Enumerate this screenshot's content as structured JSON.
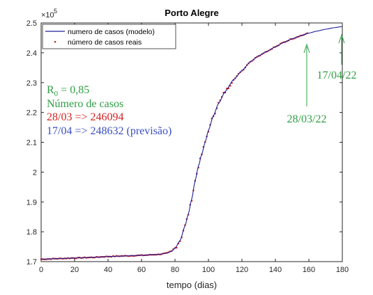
{
  "chart_data": {
    "type": "line",
    "title": "Porto Alegre",
    "xlabel": "tempo (dias)",
    "ylabel": "",
    "y_exponent_label": "×10",
    "y_exponent_power": "5",
    "xlim": [
      0,
      180
    ],
    "ylim": [
      1.7,
      2.5
    ],
    "x_ticks": [
      0,
      20,
      40,
      60,
      80,
      100,
      120,
      140,
      160,
      180
    ],
    "x_tick_labels": [
      "0",
      "20",
      "40",
      "60",
      "80",
      "100",
      "120",
      "140",
      "160",
      "180"
    ],
    "y_ticks": [
      1.7,
      1.8,
      1.9,
      2.0,
      2.1,
      2.2,
      2.3,
      2.4,
      2.5
    ],
    "y_tick_labels": [
      "1.7",
      "1.8",
      "1.9",
      "2",
      "2.1",
      "2.2",
      "2.3",
      "2.4",
      "2.5"
    ],
    "grid": false,
    "legend_position": "top-left",
    "series": [
      {
        "name": "numero de casos (modelo)",
        "style": "line",
        "color": "#1f1f99",
        "x": [
          0,
          10,
          20,
          30,
          40,
          50,
          60,
          70,
          75,
          78,
          80,
          83,
          86,
          88,
          90,
          92,
          94,
          96,
          98,
          100,
          103,
          106,
          110,
          115,
          120,
          125,
          130,
          135,
          140,
          145,
          150,
          155,
          160,
          165,
          170,
          175,
          180
        ],
        "y": [
          1.708,
          1.71,
          1.712,
          1.714,
          1.717,
          1.719,
          1.721,
          1.724,
          1.728,
          1.735,
          1.745,
          1.77,
          1.82,
          1.86,
          1.91,
          1.97,
          2.02,
          2.06,
          2.1,
          2.14,
          2.19,
          2.23,
          2.27,
          2.31,
          2.34,
          2.37,
          2.39,
          2.405,
          2.42,
          2.435,
          2.447,
          2.457,
          2.466,
          2.473,
          2.479,
          2.484,
          2.488
        ]
      },
      {
        "name": "número de casos reais",
        "style": "points",
        "color": "#c81414",
        "x_start": 0,
        "x_end": 159
      }
    ],
    "annotations": {
      "r0_text": "R",
      "r0_sub": "0",
      "r0_value": " = 0,85",
      "r0_color": "#2f9e44",
      "casos_label": "Número de casos",
      "casos_color": "#2f9e44",
      "line_2803": "28/03 => 246094",
      "line_2803_color": "#d42020",
      "line_1704": "17/04 => 248632 (previsão)",
      "line_1704_color": "#3a4fc0",
      "arrow_left_label": "28/03/22",
      "arrow_right_label": "17/04/22",
      "arrow_color": "#2f9e44"
    }
  }
}
